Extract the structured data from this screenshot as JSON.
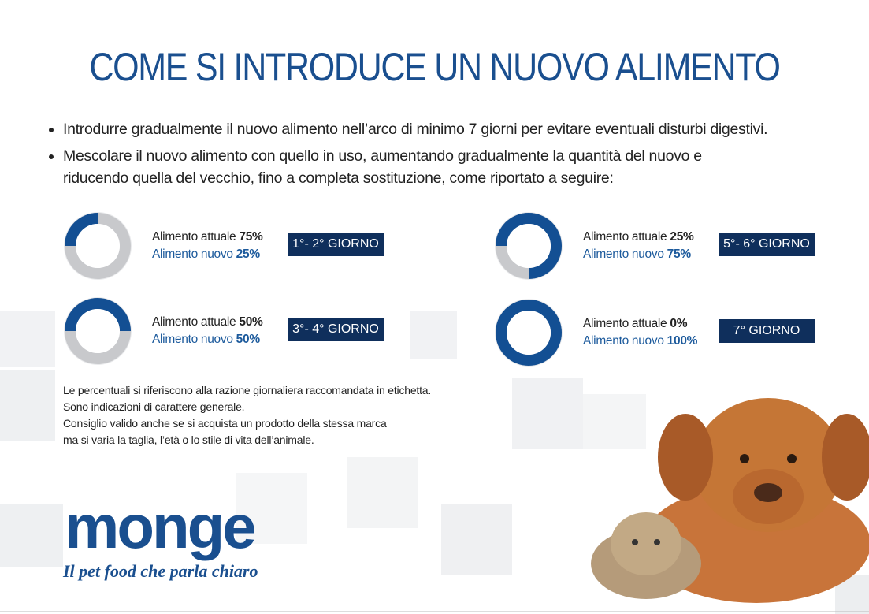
{
  "title": "COME SI INTRODUCE UN NUOVO ALIMENTO",
  "bullets": [
    "Introdurre gradualmente il nuovo alimento nell’arco di minimo 7 giorni per evitare eventuali disturbi digestivi.",
    "Mescolare il nuovo alimento con quello in uso, aumentando gradualmente la quantità del nuovo e riducendo quella del vecchio, fino a completa sostituzione, come riportato a seguire:"
  ],
  "schedule": [
    {
      "current_label": "Alimento attuale",
      "current": "75%",
      "new_label": "Alimento nuovo",
      "new": "25%",
      "day": "1°- 2° GIORNO"
    },
    {
      "current_label": "Alimento attuale",
      "current": "50%",
      "new_label": "Alimento nuovo",
      "new": "50%",
      "day": "3°- 4° GIORNO"
    },
    {
      "current_label": "Alimento attuale",
      "current": "25%",
      "new_label": "Alimento nuovo",
      "new": "75%",
      "day": "5°- 6° GIORNO"
    },
    {
      "current_label": "Alimento attuale",
      "current": "0%",
      "new_label": "Alimento nuovo",
      "new": "100%",
      "day": "7° GIORNO"
    }
  ],
  "notes": [
    "Le percentuali si riferiscono alla razione giornaliera raccomandata in etichetta.",
    "Sono indicazioni di carattere generale.",
    "Consiglio valido anche se si acquista un prodotto della stessa marca",
    "ma si varia la taglia, l’età o lo stile di vita dell’animale."
  ],
  "brand": {
    "name": "monge",
    "tagline": "Il pet food che parla chiaro"
  }
}
